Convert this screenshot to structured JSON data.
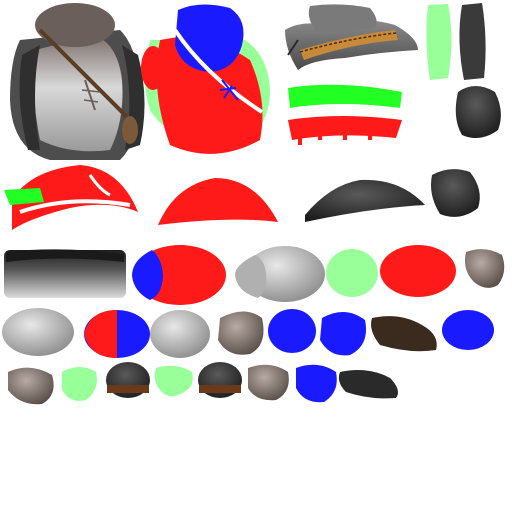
{
  "texture_atlas": {
    "background": "#ffffff",
    "palette": {
      "mask_red": "#ff1a1a",
      "mask_blue": "#1a1aff",
      "mask_green": "#99ff99",
      "mask_green_bright": "#22ff22",
      "mask_white": "#ffffff",
      "cloth_light": "#cfcfcf",
      "cloth_mid": "#9a9a9a",
      "cloth_dark": "#3a3a3a",
      "vest_dark": "#4a4a4a",
      "leather": "#7a5a3a",
      "leather_dark": "#3b2a1e",
      "skin_grey": "#8a7d78",
      "hat_grey": "#6a6a6a",
      "band_gold": "#c88a3a"
    }
  }
}
